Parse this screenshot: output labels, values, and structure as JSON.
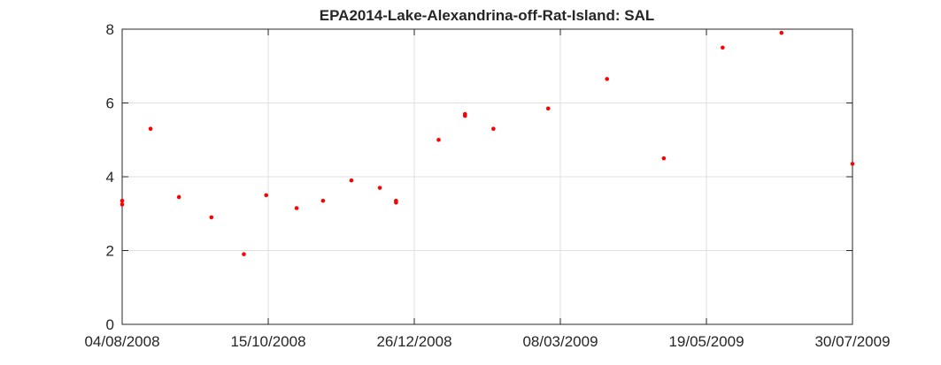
{
  "chart_data": {
    "type": "scatter",
    "title": "EPA2014-Lake-Alexandrina-off-Rat-Island: SAL",
    "xlabel": "",
    "ylabel": "",
    "xlim": [
      "2008-08-04",
      "2009-07-30"
    ],
    "ylim": [
      0,
      8
    ],
    "x_ticks": [
      "2008-08-04",
      "2008-10-15",
      "2008-12-26",
      "2009-03-08",
      "2009-05-19",
      "2009-07-30"
    ],
    "x_tick_labels": [
      "04/08/2008",
      "15/10/2008",
      "26/12/2008",
      "08/03/2009",
      "19/05/2009",
      "30/07/2009"
    ],
    "y_ticks": [
      0,
      2,
      4,
      6,
      8
    ],
    "y_tick_labels": [
      "0",
      "2",
      "4",
      "6",
      "8"
    ],
    "grid": true,
    "marker_color": "#ff0000",
    "series": [
      {
        "points": [
          {
            "x": "2008-08-04",
            "y": 3.35
          },
          {
            "x": "2008-08-04",
            "y": 3.25
          },
          {
            "x": "2008-08-18",
            "y": 5.3
          },
          {
            "x": "2008-09-01",
            "y": 3.45
          },
          {
            "x": "2008-09-17",
            "y": 2.9
          },
          {
            "x": "2008-10-03",
            "y": 1.9
          },
          {
            "x": "2008-10-14",
            "y": 3.5
          },
          {
            "x": "2008-10-29",
            "y": 3.15
          },
          {
            "x": "2008-11-11",
            "y": 3.35
          },
          {
            "x": "2008-11-25",
            "y": 3.9
          },
          {
            "x": "2008-12-09",
            "y": 3.7
          },
          {
            "x": "2008-12-17",
            "y": 3.35
          },
          {
            "x": "2008-12-17",
            "y": 3.3
          },
          {
            "x": "2009-01-07",
            "y": 5.0
          },
          {
            "x": "2009-01-20",
            "y": 5.7
          },
          {
            "x": "2009-01-20",
            "y": 5.65
          },
          {
            "x": "2009-02-03",
            "y": 5.3
          },
          {
            "x": "2009-03-02",
            "y": 5.85
          },
          {
            "x": "2009-03-31",
            "y": 6.65
          },
          {
            "x": "2009-04-28",
            "y": 4.5
          },
          {
            "x": "2009-05-27",
            "y": 7.5
          },
          {
            "x": "2009-06-25",
            "y": 7.9
          },
          {
            "x": "2009-07-30",
            "y": 4.35
          }
        ]
      }
    ]
  }
}
